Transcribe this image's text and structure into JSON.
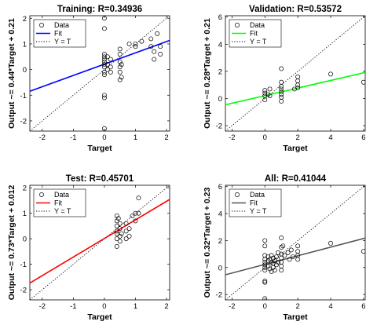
{
  "chart_data": [
    {
      "type": "scatter",
      "title": "Training: R=0.34936",
      "xlabel": "Target",
      "ylabel": "Output ~= 0.44*Target + 0.21",
      "xlim": [
        -2.4,
        2.1
      ],
      "ylim": [
        -2.4,
        2.1
      ],
      "xticks": [
        -2,
        -1,
        0,
        1,
        2
      ],
      "yticks": [
        -2,
        -1,
        0,
        1,
        2
      ],
      "legend": [
        "Data",
        "Fit",
        "Y = T"
      ],
      "legend_position": "top-left",
      "fit": {
        "slope": 0.44,
        "intercept": 0.21,
        "color": "#0000ff"
      },
      "points": [
        [
          0,
          2.0
        ],
        [
          0,
          1.6
        ],
        [
          0,
          0.6
        ],
        [
          0,
          0.5
        ],
        [
          0,
          0.4
        ],
        [
          0,
          0.3
        ],
        [
          0,
          0.2
        ],
        [
          0,
          0.1
        ],
        [
          0,
          -0.1
        ],
        [
          0,
          -0.2
        ],
        [
          0,
          -1.0
        ],
        [
          0,
          -1.1
        ],
        [
          0,
          -2.3
        ],
        [
          0.1,
          0.5
        ],
        [
          0.1,
          0.2
        ],
        [
          0.1,
          0.0
        ],
        [
          0.2,
          0.4
        ],
        [
          0.2,
          0.1
        ],
        [
          0.2,
          -0.1
        ],
        [
          0.5,
          0.8
        ],
        [
          0.5,
          0.6
        ],
        [
          0.5,
          0.3
        ],
        [
          0.5,
          0.1
        ],
        [
          0.5,
          -0.1
        ],
        [
          0.5,
          -0.4
        ],
        [
          0.55,
          0.2
        ],
        [
          0.55,
          -0.3
        ],
        [
          0.8,
          1.0
        ],
        [
          1.0,
          1.0
        ],
        [
          1.0,
          0.9
        ],
        [
          1.2,
          1.1
        ],
        [
          1.5,
          1.2
        ],
        [
          1.5,
          0.9
        ],
        [
          1.6,
          0.7
        ],
        [
          1.6,
          0.4
        ],
        [
          1.7,
          1.4
        ],
        [
          1.8,
          0.9
        ],
        [
          1.8,
          0.6
        ]
      ]
    },
    {
      "type": "scatter",
      "title": "Validation: R=0.53572",
      "xlabel": "Target",
      "ylabel": "Output ~= 0.28*Target + 0.21",
      "xlim": [
        -2.4,
        6.1
      ],
      "ylim": [
        -2.4,
        6.1
      ],
      "xticks": [
        -2,
        0,
        2,
        4,
        6
      ],
      "yticks": [
        -2,
        0,
        2,
        4,
        6
      ],
      "legend": [
        "Data",
        "Fit",
        "Y = T"
      ],
      "legend_position": "top-left",
      "fit": {
        "slope": 0.28,
        "intercept": 0.21,
        "color": "#00ff00"
      },
      "points": [
        [
          0,
          0.6
        ],
        [
          0,
          0.4
        ],
        [
          0,
          0.2
        ],
        [
          0,
          -0.1
        ],
        [
          0.2,
          0.3
        ],
        [
          0.3,
          0.7
        ],
        [
          0.3,
          0.2
        ],
        [
          1,
          2.2
        ],
        [
          1,
          1.2
        ],
        [
          1,
          0.9
        ],
        [
          1,
          0.7
        ],
        [
          1,
          0.5
        ],
        [
          1,
          0.3
        ],
        [
          1,
          0.1
        ],
        [
          1,
          -0.2
        ],
        [
          2,
          1.6
        ],
        [
          2,
          1.3
        ],
        [
          2,
          1.0
        ],
        [
          2,
          0.8
        ],
        [
          1.8,
          0.7
        ],
        [
          4,
          1.8
        ],
        [
          6,
          1.2
        ]
      ]
    },
    {
      "type": "scatter",
      "title": "Test: R=0.45701",
      "xlabel": "Target",
      "ylabel": "Output ~= 0.73*Target + 0.012",
      "xlim": [
        -2.4,
        2.1
      ],
      "ylim": [
        -2.4,
        2.1
      ],
      "xticks": [
        -2,
        -1,
        0,
        1,
        2
      ],
      "yticks": [
        -2,
        -1,
        0,
        1,
        2
      ],
      "legend": [
        "Data",
        "Fit",
        "Y = T"
      ],
      "legend_position": "top-left",
      "fit": {
        "slope": 0.73,
        "intercept": 0.012,
        "color": "#ff0000"
      },
      "points": [
        [
          0.4,
          0.9
        ],
        [
          0.4,
          0.7
        ],
        [
          0.4,
          0.5
        ],
        [
          0.4,
          0.3
        ],
        [
          0.4,
          0.2
        ],
        [
          0.4,
          0.0
        ],
        [
          0.4,
          -0.3
        ],
        [
          0.45,
          0.8
        ],
        [
          0.5,
          0.6
        ],
        [
          0.5,
          0.4
        ],
        [
          0.5,
          0.1
        ],
        [
          0.5,
          -0.1
        ],
        [
          0.55,
          0.2
        ],
        [
          0.7,
          0.6
        ],
        [
          0.7,
          0.3
        ],
        [
          0.7,
          0.0
        ],
        [
          0.8,
          0.4
        ],
        [
          0.8,
          0.1
        ],
        [
          0.9,
          0.9
        ],
        [
          1.0,
          1.0
        ],
        [
          1.0,
          0.7
        ],
        [
          1.1,
          1.6
        ],
        [
          1.1,
          1.0
        ]
      ]
    },
    {
      "type": "scatter",
      "title": "All: R=0.41044",
      "xlabel": "Target",
      "ylabel": "Output ~= 0.32*Target + 0.23",
      "xlim": [
        -2.4,
        6.1
      ],
      "ylim": [
        -2.4,
        6.1
      ],
      "xticks": [
        -2,
        0,
        2,
        4,
        6
      ],
      "yticks": [
        -2,
        0,
        2,
        4,
        6
      ],
      "legend": [
        "Data",
        "Fit",
        "Y = T"
      ],
      "legend_position": "top-left",
      "fit": {
        "slope": 0.32,
        "intercept": 0.23,
        "color": "#555555"
      },
      "points": [
        [
          0,
          2.0
        ],
        [
          0,
          1.6
        ],
        [
          0,
          0.9
        ],
        [
          0,
          0.6
        ],
        [
          0,
          0.4
        ],
        [
          0,
          0.2
        ],
        [
          0,
          0.0
        ],
        [
          0,
          -0.2
        ],
        [
          0,
          -1.0
        ],
        [
          0,
          -1.1
        ],
        [
          0,
          -2.3
        ],
        [
          0.2,
          0.8
        ],
        [
          0.2,
          0.5
        ],
        [
          0.2,
          0.1
        ],
        [
          0.3,
          0.6
        ],
        [
          0.3,
          -0.1
        ],
        [
          0.4,
          0.9
        ],
        [
          0.4,
          0.4
        ],
        [
          0.4,
          -0.3
        ],
        [
          0.5,
          0.7
        ],
        [
          0.5,
          0.3
        ],
        [
          0.5,
          0.0
        ],
        [
          0.6,
          0.5
        ],
        [
          0.6,
          -0.2
        ],
        [
          0.7,
          0.8
        ],
        [
          0.7,
          0.2
        ],
        [
          0.8,
          1.1
        ],
        [
          0.8,
          0.4
        ],
        [
          1,
          2.2
        ],
        [
          1,
          1.5
        ],
        [
          1,
          1.0
        ],
        [
          1,
          0.7
        ],
        [
          1,
          0.4
        ],
        [
          1,
          0.1
        ],
        [
          1,
          -0.2
        ],
        [
          1.1,
          1.6
        ],
        [
          1.2,
          0.9
        ],
        [
          1.4,
          1.1
        ],
        [
          1.5,
          0.6
        ],
        [
          1.6,
          1.3
        ],
        [
          1.7,
          0.8
        ],
        [
          2,
          1.6
        ],
        [
          2,
          1.2
        ],
        [
          2,
          0.9
        ],
        [
          2,
          0.6
        ],
        [
          4,
          1.8
        ],
        [
          6,
          1.2
        ]
      ]
    }
  ]
}
